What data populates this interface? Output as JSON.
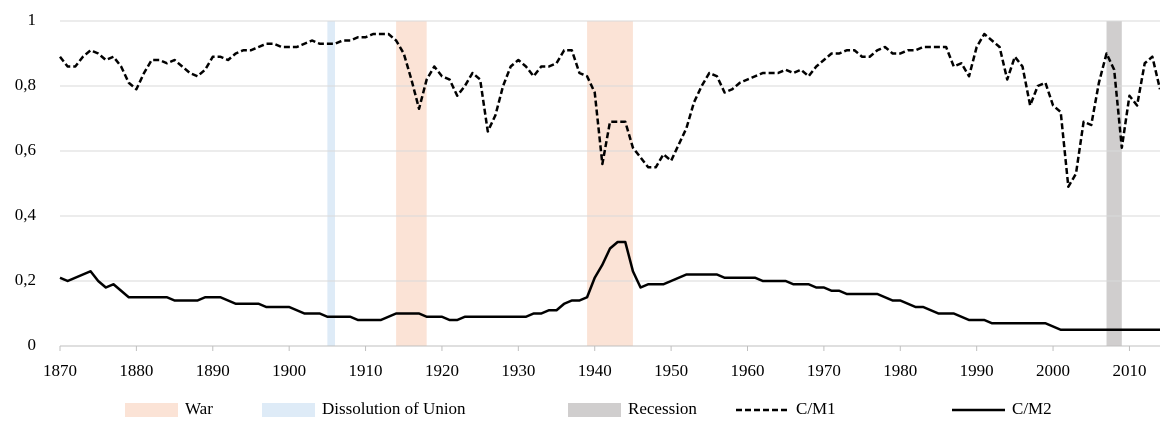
{
  "chart_data": {
    "type": "line",
    "x": [
      1870,
      1871,
      1872,
      1873,
      1874,
      1875,
      1876,
      1877,
      1878,
      1879,
      1880,
      1881,
      1882,
      1883,
      1884,
      1885,
      1886,
      1887,
      1888,
      1889,
      1890,
      1891,
      1892,
      1893,
      1894,
      1895,
      1896,
      1897,
      1898,
      1899,
      1900,
      1901,
      1902,
      1903,
      1904,
      1905,
      1906,
      1907,
      1908,
      1909,
      1910,
      1911,
      1912,
      1913,
      1914,
      1915,
      1916,
      1917,
      1918,
      1919,
      1920,
      1921,
      1922,
      1923,
      1924,
      1925,
      1926,
      1927,
      1928,
      1929,
      1930,
      1931,
      1932,
      1933,
      1934,
      1935,
      1936,
      1937,
      1938,
      1939,
      1940,
      1941,
      1942,
      1943,
      1944,
      1945,
      1946,
      1947,
      1948,
      1949,
      1950,
      1951,
      1952,
      1953,
      1954,
      1955,
      1956,
      1957,
      1958,
      1959,
      1960,
      1961,
      1962,
      1963,
      1964,
      1965,
      1966,
      1967,
      1968,
      1969,
      1970,
      1971,
      1972,
      1973,
      1974,
      1975,
      1976,
      1977,
      1978,
      1979,
      1980,
      1981,
      1982,
      1983,
      1984,
      1985,
      1986,
      1987,
      1988,
      1989,
      1990,
      1991,
      1992,
      1993,
      1994,
      1995,
      1996,
      1997,
      1998,
      1999,
      2000,
      2001,
      2002,
      2003,
      2004,
      2005,
      2006,
      2007,
      2008,
      2009,
      2010,
      2011,
      2012,
      2013,
      2014
    ],
    "series": [
      {
        "name": "C/M1",
        "color": "#000000",
        "dash": true,
        "values": [
          0.89,
          0.86,
          0.86,
          0.89,
          0.91,
          0.9,
          0.88,
          0.89,
          0.86,
          0.81,
          0.79,
          0.84,
          0.88,
          0.88,
          0.87,
          0.88,
          0.86,
          0.84,
          0.83,
          0.85,
          0.89,
          0.89,
          0.88,
          0.9,
          0.91,
          0.91,
          0.92,
          0.93,
          0.93,
          0.92,
          0.92,
          0.92,
          0.93,
          0.94,
          0.93,
          0.93,
          0.93,
          0.94,
          0.94,
          0.95,
          0.95,
          0.96,
          0.96,
          0.96,
          0.94,
          0.9,
          0.82,
          0.73,
          0.82,
          0.86,
          0.83,
          0.82,
          0.77,
          0.8,
          0.84,
          0.82,
          0.66,
          0.71,
          0.8,
          0.86,
          0.88,
          0.86,
          0.83,
          0.86,
          0.86,
          0.87,
          0.91,
          0.91,
          0.84,
          0.83,
          0.78,
          0.56,
          0.69,
          0.69,
          0.69,
          0.61,
          0.58,
          0.55,
          0.55,
          0.59,
          0.57,
          0.62,
          0.67,
          0.75,
          0.8,
          0.84,
          0.83,
          0.78,
          0.79,
          0.81,
          0.82,
          0.83,
          0.84,
          0.84,
          0.84,
          0.85,
          0.84,
          0.85,
          0.83,
          0.86,
          0.88,
          0.9,
          0.9,
          0.91,
          0.91,
          0.89,
          0.89,
          0.91,
          0.92,
          0.9,
          0.9,
          0.91,
          0.91,
          0.92,
          0.92,
          0.92,
          0.92,
          0.86,
          0.87,
          0.83,
          0.92,
          0.96,
          0.94,
          0.92,
          0.82,
          0.89,
          0.86,
          0.74,
          0.8,
          0.81,
          0.74,
          0.72,
          0.49,
          0.53,
          0.69,
          0.68,
          0.81,
          0.9,
          0.85,
          0.61,
          0.77,
          0.74,
          0.87,
          0.89,
          0.79
        ]
      },
      {
        "name": "C/M2",
        "color": "#000000",
        "dash": false,
        "values": [
          0.21,
          0.2,
          0.21,
          0.22,
          0.23,
          0.2,
          0.18,
          0.19,
          0.17,
          0.15,
          0.15,
          0.15,
          0.15,
          0.15,
          0.15,
          0.14,
          0.14,
          0.14,
          0.14,
          0.15,
          0.15,
          0.15,
          0.14,
          0.13,
          0.13,
          0.13,
          0.13,
          0.12,
          0.12,
          0.12,
          0.12,
          0.11,
          0.1,
          0.1,
          0.1,
          0.09,
          0.09,
          0.09,
          0.09,
          0.08,
          0.08,
          0.08,
          0.08,
          0.09,
          0.1,
          0.1,
          0.1,
          0.1,
          0.09,
          0.09,
          0.09,
          0.08,
          0.08,
          0.09,
          0.09,
          0.09,
          0.09,
          0.09,
          0.09,
          0.09,
          0.09,
          0.09,
          0.1,
          0.1,
          0.11,
          0.11,
          0.13,
          0.14,
          0.14,
          0.15,
          0.21,
          0.25,
          0.3,
          0.32,
          0.32,
          0.23,
          0.18,
          0.19,
          0.19,
          0.19,
          0.2,
          0.21,
          0.22,
          0.22,
          0.22,
          0.22,
          0.22,
          0.21,
          0.21,
          0.21,
          0.21,
          0.21,
          0.2,
          0.2,
          0.2,
          0.2,
          0.19,
          0.19,
          0.19,
          0.18,
          0.18,
          0.17,
          0.17,
          0.16,
          0.16,
          0.16,
          0.16,
          0.16,
          0.15,
          0.14,
          0.14,
          0.13,
          0.12,
          0.12,
          0.11,
          0.1,
          0.1,
          0.1,
          0.09,
          0.08,
          0.08,
          0.08,
          0.07,
          0.07,
          0.07,
          0.07,
          0.07,
          0.07,
          0.07,
          0.07,
          0.06,
          0.05,
          0.05,
          0.05,
          0.05,
          0.05,
          0.05,
          0.05,
          0.05,
          0.05,
          0.05,
          0.05,
          0.05,
          0.05,
          0.05
        ]
      }
    ],
    "periods": [
      {
        "name": "War",
        "color": "#fbe3d6",
        "ranges": [
          [
            1914,
            1918
          ],
          [
            1939,
            1945
          ]
        ]
      },
      {
        "name": "Dissolution of Union",
        "color": "#deebf7",
        "ranges": [
          [
            1905,
            1906
          ]
        ]
      },
      {
        "name": "Recession",
        "color": "#d0cece",
        "ranges": [
          [
            2007,
            2009
          ]
        ]
      }
    ],
    "xlim": [
      1870,
      2014
    ],
    "xticks": [
      1870,
      1880,
      1890,
      1900,
      1910,
      1920,
      1930,
      1940,
      1950,
      1960,
      1970,
      1980,
      1990,
      2000,
      2010
    ],
    "ylim": [
      0,
      1
    ],
    "yticks": [
      0,
      {
        "value": 0.2,
        "label": "0,2"
      },
      {
        "value": 0.4,
        "label": "0,4"
      },
      {
        "value": 0.6,
        "label": "0,6"
      },
      {
        "value": 0.8,
        "label": "0,8"
      },
      1
    ],
    "grid": true
  }
}
